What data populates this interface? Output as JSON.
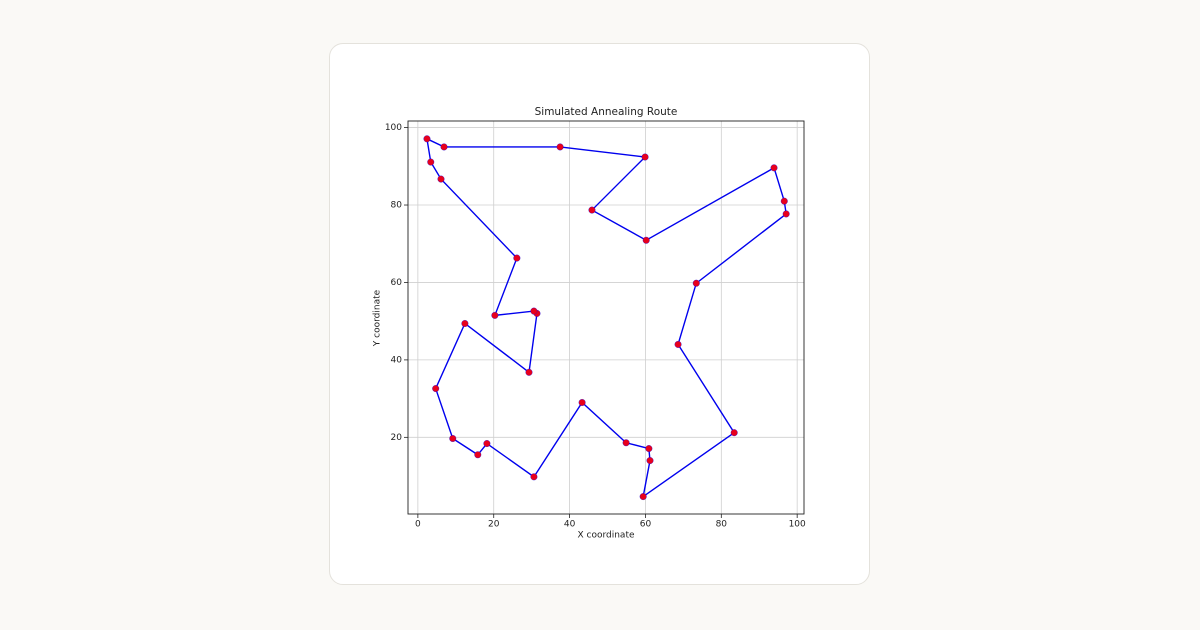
{
  "chart_data": {
    "type": "route",
    "title": "Simulated Annealing Route",
    "x_label": "X coordinate",
    "y_label": "Y coordinate",
    "x": [
      2.4,
      6.9,
      37.5,
      59.9,
      45.9,
      60.2,
      93.9,
      96.6,
      97.1,
      73.4,
      68.6,
      83.4,
      59.4,
      61.2,
      60.9,
      54.9,
      43.3,
      30.6,
      18.2,
      15.8,
      9.2,
      4.7,
      12.4,
      29.3,
      31.4,
      30.6,
      20.3,
      26.1,
      6.1,
      3.4
    ],
    "series": [
      {
        "color": "#0000ee",
        "marker_color": "#e8001c",
        "values": [
          97.1,
          95.0,
          95.0,
          92.4,
          78.7,
          70.9,
          89.6,
          81.0,
          77.7,
          59.8,
          44.0,
          21.2,
          4.7,
          14.0,
          17.1,
          18.6,
          29.0,
          9.8,
          18.4,
          15.5,
          19.7,
          32.6,
          49.4,
          36.8,
          52.0,
          52.6,
          51.5,
          66.3,
          86.7,
          91.1
        ]
      }
    ],
    "closed": true,
    "xlim": [
      -2.6,
      101.8
    ],
    "ylim": [
      0.2,
      101.7
    ],
    "xticks": [
      0,
      20,
      40,
      60,
      80,
      100
    ],
    "yticks": [
      20,
      40,
      60,
      80,
      100
    ],
    "grid": true
  }
}
